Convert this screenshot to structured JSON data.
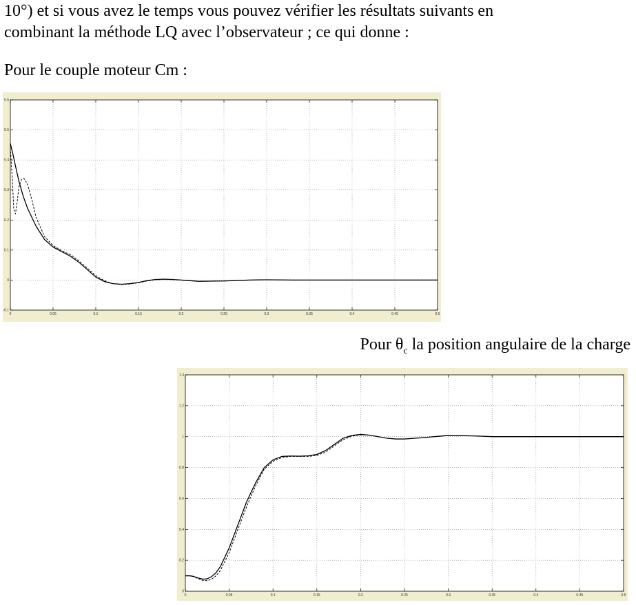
{
  "text": {
    "line1": "10°) et si vous avez le temps vous pouvez vérifier les résultats suivants en",
    "line2": "combinant la méthode LQ avec l’observateur ; ce qui donne :",
    "caption1": "Pour le couple moteur Cm :",
    "caption2_prefix": "Pour ",
    "caption2_symbol": "θ",
    "caption2_sub": "c",
    "caption2_suffix": " la position angulaire de la charge"
  },
  "colors": {
    "figure_background": "#f1edcf",
    "plot_background": "#ffffff",
    "grid": "#8a8a8a",
    "line": "#000000"
  },
  "chart_data": [
    {
      "type": "line",
      "title": "",
      "xlabel": "",
      "ylabel": "",
      "xlim": [
        0,
        0.5
      ],
      "ylim": [
        -0.1,
        0.6
      ],
      "xticks": [
        "0",
        "0.05",
        "0.1",
        "0.15",
        "0.2",
        "0.25",
        "0.3",
        "0.35",
        "0.4",
        "0.45",
        "0.5"
      ],
      "yticks": [
        "-0.1",
        "0",
        "0.1",
        "0.2",
        "0.3",
        "0.4",
        "0.5",
        "0.6"
      ],
      "grid": true,
      "series": [
        {
          "style": "solid",
          "x": [
            0,
            0.003,
            0.006,
            0.01,
            0.015,
            0.02,
            0.03,
            0.04,
            0.05,
            0.06,
            0.07,
            0.08,
            0.09,
            0.1,
            0.11,
            0.12,
            0.13,
            0.14,
            0.15,
            0.16,
            0.17,
            0.18,
            0.19,
            0.2,
            0.22,
            0.25,
            0.28,
            0.3,
            0.33,
            0.35,
            0.4,
            0.45,
            0.5
          ],
          "y": [
            0.455,
            0.42,
            0.38,
            0.33,
            0.28,
            0.24,
            0.18,
            0.135,
            0.11,
            0.095,
            0.08,
            0.06,
            0.035,
            0.01,
            -0.005,
            -0.012,
            -0.014,
            -0.012,
            -0.008,
            -0.002,
            0.002,
            0.003,
            0.002,
            0.0,
            -0.004,
            -0.003,
            0.0,
            0.001,
            0.0,
            0.0,
            0.0,
            0.0,
            0.0
          ]
        },
        {
          "style": "dashed",
          "x": [
            0,
            0.002,
            0.004,
            0.006,
            0.008,
            0.01,
            0.013,
            0.016,
            0.02,
            0.025,
            0.03,
            0.04,
            0.05,
            0.06,
            0.07,
            0.08,
            0.09,
            0.1,
            0.11,
            0.12,
            0.13,
            0.14,
            0.15,
            0.16,
            0.17,
            0.18,
            0.19,
            0.2,
            0.22,
            0.25,
            0.28,
            0.3,
            0.33,
            0.35,
            0.4,
            0.45,
            0.5
          ],
          "y": [
            0.44,
            0.35,
            0.24,
            0.22,
            0.26,
            0.31,
            0.335,
            0.338,
            0.32,
            0.27,
            0.21,
            0.145,
            0.115,
            0.098,
            0.085,
            0.065,
            0.04,
            0.015,
            -0.002,
            -0.012,
            -0.015,
            -0.013,
            -0.009,
            -0.003,
            0.001,
            0.002,
            0.001,
            0.0,
            -0.004,
            -0.003,
            0.0,
            0.001,
            0.0,
            0.0,
            0.0,
            0.0,
            0.0
          ]
        }
      ]
    },
    {
      "type": "line",
      "title": "",
      "xlabel": "",
      "ylabel": "",
      "xlim": [
        0,
        0.5
      ],
      "ylim": [
        0,
        1.4
      ],
      "xticks": [
        "0",
        "0.05",
        "0.1",
        "0.15",
        "0.2",
        "0.25",
        "0.3",
        "0.35",
        "0.4",
        "0.45",
        "0.5"
      ],
      "yticks": [
        "0",
        "0.2",
        "0.4",
        "0.6",
        "0.8",
        "1",
        "1.2",
        "1.4"
      ],
      "grid": true,
      "series": [
        {
          "style": "solid",
          "x": [
            0,
            0.005,
            0.01,
            0.015,
            0.02,
            0.025,
            0.03,
            0.035,
            0.04,
            0.05,
            0.06,
            0.07,
            0.08,
            0.09,
            0.1,
            0.11,
            0.12,
            0.13,
            0.14,
            0.15,
            0.16,
            0.17,
            0.18,
            0.19,
            0.2,
            0.21,
            0.22,
            0.23,
            0.24,
            0.25,
            0.27,
            0.3,
            0.33,
            0.35,
            0.4,
            0.45,
            0.5
          ],
          "y": [
            0.1,
            0.1,
            0.095,
            0.085,
            0.078,
            0.08,
            0.095,
            0.12,
            0.16,
            0.28,
            0.43,
            0.58,
            0.7,
            0.8,
            0.85,
            0.872,
            0.875,
            0.874,
            0.876,
            0.885,
            0.91,
            0.95,
            0.99,
            1.008,
            1.015,
            1.01,
            1.0,
            0.99,
            0.985,
            0.985,
            0.993,
            1.008,
            1.005,
            1.0,
            1.0,
            1.0,
            1.0
          ]
        },
        {
          "style": "dashed",
          "x": [
            0,
            0.005,
            0.01,
            0.015,
            0.02,
            0.025,
            0.03,
            0.035,
            0.04,
            0.05,
            0.06,
            0.07,
            0.08,
            0.09,
            0.1,
            0.11,
            0.12,
            0.13,
            0.14,
            0.15,
            0.16,
            0.17,
            0.18,
            0.19,
            0.2,
            0.21,
            0.22,
            0.23,
            0.24,
            0.25,
            0.27,
            0.3,
            0.33,
            0.35,
            0.4,
            0.45,
            0.5
          ],
          "y": [
            0.1,
            0.1,
            0.093,
            0.08,
            0.07,
            0.068,
            0.078,
            0.1,
            0.135,
            0.25,
            0.4,
            0.55,
            0.68,
            0.79,
            0.84,
            0.865,
            0.872,
            0.872,
            0.872,
            0.878,
            0.9,
            0.94,
            0.98,
            1.003,
            1.012,
            1.01,
            1.0,
            0.99,
            0.985,
            0.985,
            0.993,
            1.008,
            1.005,
            1.0,
            1.0,
            1.0,
            1.0
          ]
        }
      ]
    }
  ]
}
